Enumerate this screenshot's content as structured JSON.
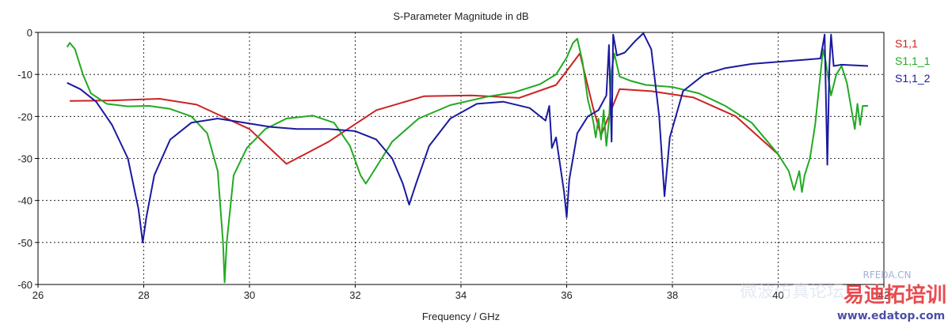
{
  "chart_data": {
    "type": "line",
    "title": "S-Parameter Magnitude in dB",
    "xlabel": "Frequency / GHz",
    "ylabel": "",
    "xlim": [
      26,
      42
    ],
    "ylim": [
      -60,
      0
    ],
    "xticks": [
      "26",
      "28",
      "30",
      "32",
      "34",
      "36",
      "38",
      "40",
      "42"
    ],
    "yticks": [
      "0",
      "-10",
      "-20",
      "-30",
      "-40",
      "-50",
      "-60"
    ],
    "grid": true,
    "legend_position": "right",
    "series": [
      {
        "name": "S1,1",
        "color": "#cc2222",
        "points": [
          [
            26.6,
            -16.3
          ],
          [
            27.4,
            -16.2
          ],
          [
            28.3,
            -15.8
          ],
          [
            29.0,
            -17.2
          ],
          [
            30.0,
            -23.0
          ],
          [
            30.7,
            -31.3
          ],
          [
            31.5,
            -26.0
          ],
          [
            32.4,
            -18.5
          ],
          [
            33.3,
            -15.2
          ],
          [
            34.2,
            -15.0
          ],
          [
            35.1,
            -15.6
          ],
          [
            35.8,
            -12.5
          ],
          [
            36.25,
            -5.0
          ],
          [
            36.5,
            -18.0
          ],
          [
            36.65,
            -24.5
          ],
          [
            37.0,
            -13.5
          ],
          [
            37.6,
            -14.0
          ],
          [
            38.4,
            -15.5
          ],
          [
            39.2,
            -20.0
          ],
          [
            40.0,
            -29.0
          ]
        ]
      },
      {
        "name": "S1,1_1",
        "color": "#22aa22",
        "points": [
          [
            26.55,
            -3.5
          ],
          [
            26.6,
            -2.5
          ],
          [
            26.7,
            -4.0
          ],
          [
            26.85,
            -10.0
          ],
          [
            27.0,
            -14.5
          ],
          [
            27.3,
            -17.0
          ],
          [
            27.7,
            -17.6
          ],
          [
            28.1,
            -17.5
          ],
          [
            28.5,
            -18.2
          ],
          [
            28.9,
            -20.0
          ],
          [
            29.2,
            -24.0
          ],
          [
            29.4,
            -33.0
          ],
          [
            29.5,
            -50.0
          ],
          [
            29.53,
            -59.5
          ],
          [
            29.57,
            -50.0
          ],
          [
            29.7,
            -34.0
          ],
          [
            29.95,
            -27.5
          ],
          [
            30.3,
            -23.0
          ],
          [
            30.7,
            -20.5
          ],
          [
            31.2,
            -19.8
          ],
          [
            31.6,
            -21.5
          ],
          [
            31.9,
            -27.0
          ],
          [
            32.1,
            -34.0
          ],
          [
            32.2,
            -36.0
          ],
          [
            32.35,
            -33.0
          ],
          [
            32.7,
            -26.0
          ],
          [
            33.2,
            -20.5
          ],
          [
            33.8,
            -17.3
          ],
          [
            34.5,
            -15.3
          ],
          [
            35.0,
            -14.3
          ],
          [
            35.5,
            -12.3
          ],
          [
            35.8,
            -10.0
          ],
          [
            36.0,
            -6.0
          ],
          [
            36.12,
            -2.5
          ],
          [
            36.2,
            -1.5
          ],
          [
            36.3,
            -7.0
          ],
          [
            36.4,
            -16.0
          ],
          [
            36.5,
            -21.0
          ],
          [
            36.55,
            -25.0
          ],
          [
            36.6,
            -20.5
          ],
          [
            36.65,
            -25.5
          ],
          [
            36.7,
            -18.5
          ],
          [
            36.75,
            -27.0
          ],
          [
            36.8,
            -21.0
          ],
          [
            36.85,
            -9.0
          ],
          [
            36.9,
            -5.0
          ],
          [
            37.0,
            -10.5
          ],
          [
            37.2,
            -11.5
          ],
          [
            37.5,
            -12.5
          ],
          [
            38.0,
            -13.0
          ],
          [
            38.5,
            -14.5
          ],
          [
            39.0,
            -17.5
          ],
          [
            39.5,
            -21.5
          ],
          [
            39.8,
            -26.0
          ],
          [
            40.0,
            -29.0
          ],
          [
            40.2,
            -33.0
          ],
          [
            40.3,
            -37.5
          ],
          [
            40.4,
            -33.0
          ],
          [
            40.45,
            -38.0
          ],
          [
            40.5,
            -34.0
          ],
          [
            40.6,
            -30.0
          ],
          [
            40.7,
            -22.0
          ],
          [
            40.8,
            -10.0
          ],
          [
            40.85,
            -4.0
          ],
          [
            40.9,
            -7.0
          ],
          [
            41.0,
            -15.0
          ],
          [
            41.1,
            -10.0
          ],
          [
            41.2,
            -8.0
          ],
          [
            41.3,
            -12.0
          ],
          [
            41.45,
            -23.0
          ],
          [
            41.5,
            -17.0
          ],
          [
            41.55,
            -22.0
          ],
          [
            41.6,
            -17.5
          ],
          [
            41.7,
            -17.5
          ]
        ]
      },
      {
        "name": "S1,1_2",
        "color": "#1a1aa0",
        "points": [
          [
            26.55,
            -12.0
          ],
          [
            26.8,
            -13.5
          ],
          [
            27.1,
            -16.5
          ],
          [
            27.4,
            -22.0
          ],
          [
            27.7,
            -30.0
          ],
          [
            27.9,
            -42.0
          ],
          [
            27.98,
            -50.0
          ],
          [
            28.05,
            -44.0
          ],
          [
            28.2,
            -34.0
          ],
          [
            28.5,
            -25.5
          ],
          [
            28.9,
            -21.5
          ],
          [
            29.4,
            -20.5
          ],
          [
            29.9,
            -21.5
          ],
          [
            30.4,
            -22.5
          ],
          [
            30.9,
            -23.0
          ],
          [
            31.5,
            -23.0
          ],
          [
            32.0,
            -23.5
          ],
          [
            32.4,
            -25.5
          ],
          [
            32.7,
            -30.0
          ],
          [
            32.9,
            -36.0
          ],
          [
            33.02,
            -41.0
          ],
          [
            33.15,
            -36.0
          ],
          [
            33.4,
            -27.0
          ],
          [
            33.8,
            -20.5
          ],
          [
            34.3,
            -17.0
          ],
          [
            34.8,
            -16.5
          ],
          [
            35.3,
            -18.0
          ],
          [
            35.6,
            -21.0
          ],
          [
            35.67,
            -17.5
          ],
          [
            35.72,
            -27.5
          ],
          [
            35.8,
            -25.0
          ],
          [
            35.95,
            -38.0
          ],
          [
            36.0,
            -44.0
          ],
          [
            36.05,
            -35.0
          ],
          [
            36.2,
            -24.0
          ],
          [
            36.4,
            -20.0
          ],
          [
            36.6,
            -18.5
          ],
          [
            36.75,
            -15.0
          ],
          [
            36.8,
            -3.0
          ],
          [
            36.85,
            -26.0
          ],
          [
            36.88,
            -0.5
          ],
          [
            36.95,
            -5.5
          ],
          [
            37.1,
            -4.8
          ],
          [
            37.3,
            -2.0
          ],
          [
            37.45,
            -0.2
          ],
          [
            37.6,
            -4.0
          ],
          [
            37.75,
            -20.0
          ],
          [
            37.85,
            -39.0
          ],
          [
            37.95,
            -25.0
          ],
          [
            38.2,
            -14.0
          ],
          [
            38.6,
            -10.0
          ],
          [
            39.0,
            -8.5
          ],
          [
            39.5,
            -7.5
          ],
          [
            40.0,
            -7.0
          ],
          [
            40.5,
            -6.5
          ],
          [
            40.8,
            -6.2
          ],
          [
            40.88,
            -0.5
          ],
          [
            40.93,
            -31.5
          ],
          [
            40.97,
            -8.0
          ],
          [
            41.0,
            -0.5
          ],
          [
            41.05,
            -8.0
          ],
          [
            41.2,
            -7.7
          ],
          [
            41.7,
            -8.0
          ]
        ]
      }
    ]
  },
  "watermark": {
    "brand_cn": "易迪拓培训",
    "url": "www.edatop.com",
    "site": "RFEDA.CN",
    "faint_text": "微波仿真论坛"
  }
}
